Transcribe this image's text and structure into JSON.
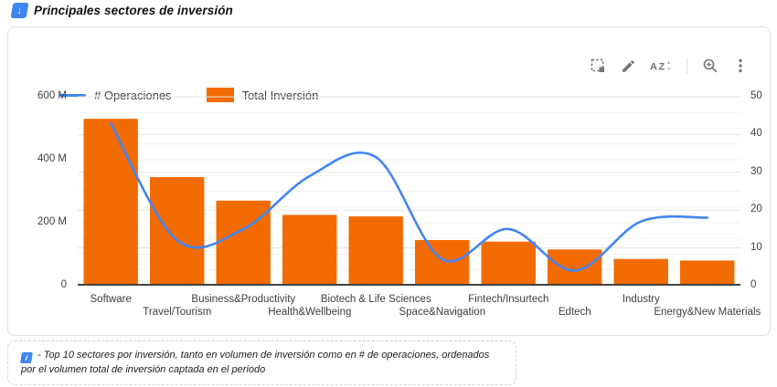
{
  "header": {
    "title": "Principales sectores de inversión",
    "title_icon": "down-arrow-badge-icon"
  },
  "toolbar": {
    "icons": [
      "marquee-select",
      "edit",
      "sort-alpha",
      "zoom",
      "more-options"
    ]
  },
  "colors": {
    "bar": "#f26b00",
    "line": "#4285f4",
    "grid_minor": "#f2f2f2",
    "grid_major": "#e5e5e5",
    "baseline": "#424242",
    "axis_text": "#424242",
    "icon_gray": "#757575"
  },
  "chart_data": {
    "type": "combo",
    "title": "Principales sectores de inversión",
    "categories": [
      "Software",
      "Travel/Tourism",
      "Business&Productivity",
      "Health&Wellbeing",
      "Biotech & Life Sciences",
      "Space&Navigation",
      "Fintech/Insurtech",
      "Edtech",
      "Industry",
      "Energy&New Materials"
    ],
    "series": [
      {
        "name": "# Operaciones",
        "type": "line",
        "axis": "right",
        "color": "#4285f4",
        "values": [
          43,
          12,
          15,
          29,
          34,
          7,
          15,
          4,
          17,
          18
        ]
      },
      {
        "name": "Total Inversión",
        "type": "bar",
        "axis": "left",
        "color": "#f26b00",
        "values_millions": [
          530,
          345,
          270,
          225,
          220,
          145,
          140,
          115,
          85,
          80
        ]
      }
    ],
    "left_axis": {
      "max_millions": 600,
      "minor_step_millions": 50,
      "ticks_millions": [
        0,
        200,
        400,
        600
      ],
      "tick_labels": [
        "0",
        "200 M",
        "400 M",
        "600 M"
      ]
    },
    "right_axis": {
      "max": 50,
      "step": 10,
      "ticks": [
        0,
        10,
        20,
        30,
        40,
        50
      ],
      "tick_labels": [
        "0",
        "10",
        "20",
        "30",
        "40",
        "50"
      ]
    },
    "legend_position": "top-left",
    "grid": true
  },
  "footnote": {
    "text": "- Top 10 sectores por inversión, tanto en volumen de inversión como en # de operaciones, ordenados por el volumen total de inversión captada en el periodo"
  }
}
